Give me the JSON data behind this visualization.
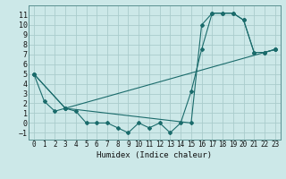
{
  "title": "",
  "xlabel": "Humidex (Indice chaleur)",
  "ylabel": "",
  "background_color": "#cce8e8",
  "grid_color": "#aacccc",
  "line_color": "#1a6b6b",
  "xlim": [
    -0.5,
    23.5
  ],
  "ylim": [
    -1.7,
    12.0
  ],
  "xticks": [
    0,
    1,
    2,
    3,
    4,
    5,
    6,
    7,
    8,
    9,
    10,
    11,
    12,
    13,
    14,
    15,
    16,
    17,
    18,
    19,
    20,
    21,
    22,
    23
  ],
  "yticks": [
    -1,
    0,
    1,
    2,
    3,
    4,
    5,
    6,
    7,
    8,
    9,
    10,
    11
  ],
  "line1_x": [
    0,
    1,
    2,
    3,
    4,
    5,
    6,
    7,
    8,
    9,
    10,
    11,
    12,
    13,
    14,
    15,
    16,
    17,
    18,
    19,
    20,
    21,
    22,
    23
  ],
  "line1_y": [
    5.0,
    2.2,
    1.2,
    1.5,
    1.2,
    0.0,
    0.0,
    0.0,
    -0.5,
    -1.0,
    0.0,
    -0.5,
    0.0,
    -1.0,
    0.0,
    3.2,
    7.5,
    11.2,
    11.2,
    11.2,
    10.5,
    7.2,
    7.2,
    7.5
  ],
  "line2_x": [
    0,
    3,
    15,
    16,
    17,
    18,
    19,
    20,
    21,
    22,
    23
  ],
  "line2_y": [
    5.0,
    1.5,
    0.0,
    10.0,
    11.2,
    11.2,
    11.2,
    10.5,
    7.2,
    7.2,
    7.5
  ],
  "line3_x": [
    0,
    3,
    23
  ],
  "line3_y": [
    5.0,
    1.5,
    7.5
  ]
}
